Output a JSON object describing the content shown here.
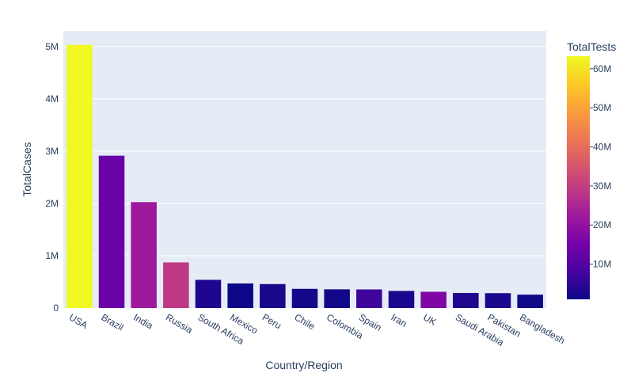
{
  "chart_data": {
    "type": "bar",
    "title": "",
    "xlabel": "Country/Region",
    "ylabel": "TotalCases",
    "categories": [
      "USA",
      "Brazil",
      "India",
      "Russia",
      "South Africa",
      "Mexico",
      "Peru",
      "Chile",
      "Colombia",
      "Spain",
      "Iran",
      "UK",
      "Saudi Arabia",
      "Pakistan",
      "Bangladesh"
    ],
    "values": [
      5032000,
      2913000,
      2025000,
      872000,
      539000,
      470000,
      458000,
      367000,
      358000,
      356000,
      327000,
      311000,
      288000,
      284000,
      256000
    ],
    "color_values": [
      63200000,
      13200000,
      22100000,
      28900000,
      3100000,
      1000000,
      2500000,
      1800000,
      1500000,
      7000000,
      2700000,
      17000000,
      3500000,
      2600000,
      1300000
    ],
    "ylim": [
      0,
      5300000
    ],
    "yticks": [
      0,
      1000000,
      2000000,
      3000000,
      4000000,
      5000000
    ],
    "ytick_labels": [
      "0",
      "1M",
      "2M",
      "3M",
      "4M",
      "5M"
    ],
    "colorbar": {
      "title": "TotalTests",
      "range": [
        1000000,
        63200000
      ],
      "ticks": [
        10000000,
        20000000,
        30000000,
        40000000,
        50000000,
        60000000
      ],
      "tick_labels": [
        "10M",
        "20M",
        "30M",
        "40M",
        "50M",
        "60M"
      ],
      "colorscale": [
        "#0d0887",
        "#46039f",
        "#7201a8",
        "#9c179e",
        "#bd3786",
        "#d8576b",
        "#ed7953",
        "#fb9f3a",
        "#fdca26",
        "#f0f921"
      ]
    },
    "grid": true,
    "plot_background": "#e5ecf6"
  }
}
